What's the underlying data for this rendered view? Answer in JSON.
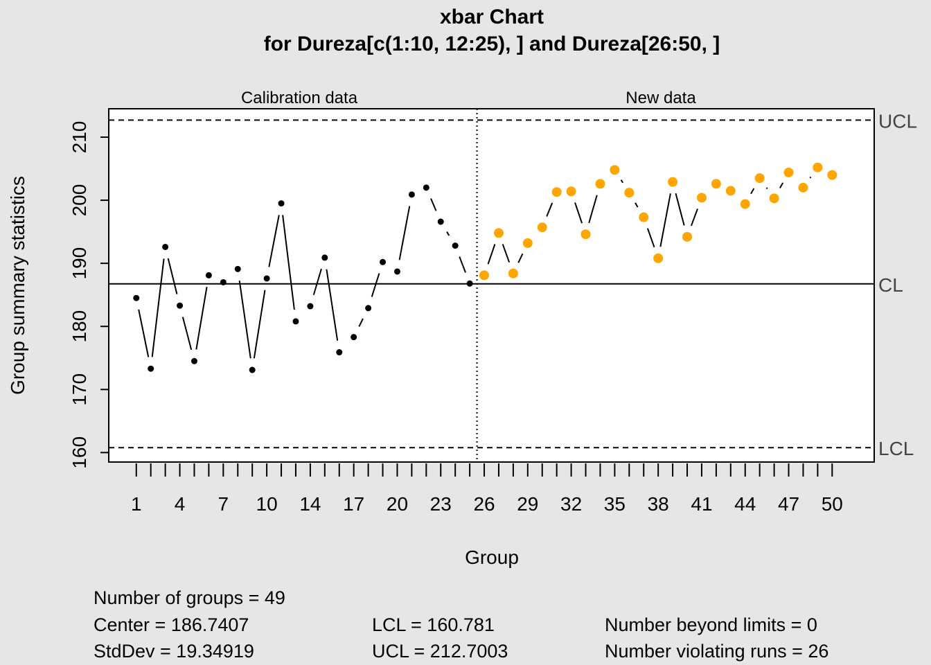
{
  "chart_data": {
    "type": "line",
    "title": "xbar Chart",
    "subtitle": "for Dureza[c(1:10, 12:25), ] and Dureza[26:50, ]",
    "xlabel": "Group",
    "ylabel": "Group summary statistics",
    "ylim": [
      158.5,
      214.5
    ],
    "xlim": [
      -0.9,
      51.9
    ],
    "yticks": [
      160,
      170,
      180,
      190,
      200,
      210
    ],
    "xtick_labels": [
      "1",
      "4",
      "7",
      "10",
      "14",
      "17",
      "20",
      "23",
      "26",
      "29",
      "32",
      "35",
      "38",
      "41",
      "44",
      "47",
      "50"
    ],
    "sections": [
      "Calibration data",
      "New data"
    ],
    "limits": {
      "UCL": 212.7003,
      "CL": 186.7407,
      "LCL": 160.781
    },
    "limit_labels": {
      "ucl": "UCL",
      "cl": "CL",
      "lcl": "LCL"
    },
    "series": [
      {
        "values": [
          184.5,
          173.3,
          192.6,
          183.3,
          174.5,
          188.1,
          187.0,
          189.1,
          173.1,
          187.6,
          199.5,
          180.8,
          183.2,
          190.9,
          175.9,
          178.3,
          182.9,
          190.2,
          188.7,
          200.9,
          202.0,
          196.6,
          192.8,
          186.8
        ]
      },
      {
        "values": [
          188.1,
          194.8,
          188.4,
          193.2,
          195.7,
          201.3,
          201.4,
          194.6,
          202.6,
          204.8,
          201.2,
          197.3,
          190.8,
          202.9,
          194.2,
          200.4,
          202.6,
          201.5,
          199.4,
          203.5,
          200.3,
          204.4,
          202.0,
          205.2,
          204.0
        ]
      }
    ],
    "colors": {
      "calibration_points": "#000000",
      "new_points": "#FFA500",
      "background": "#e6e6e6",
      "plot_bg": "#ffffff"
    }
  },
  "stats": {
    "number_of_groups": "Number of groups = 49",
    "center": "Center = 186.7407",
    "stddev": "StdDev = 19.34919",
    "lcl": "LCL = 160.781",
    "ucl": "UCL = 212.7003",
    "beyond_limits": "Number beyond limits = 0",
    "violating_runs": "Number violating runs = 26"
  }
}
